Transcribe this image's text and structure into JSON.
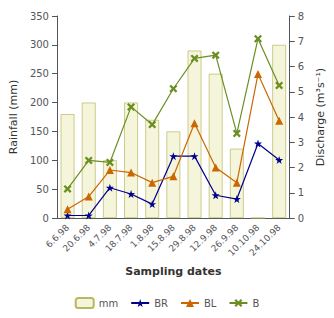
{
  "chart_data": {
    "type": "bar",
    "xlabel": "Sampling dates",
    "ylabel": "Rainfall (mm)",
    "y2label": "Discharge (m³s⁻¹)",
    "categories": [
      "6.6.98",
      "20.6.98",
      "4.7.98",
      "18.7.98",
      "1.8.98",
      "15.8.98",
      "29.8.98",
      "12.9.98",
      "26.9.98",
      "10.10.98",
      "24.10.98"
    ],
    "series": [
      {
        "name": "mm",
        "type": "bar",
        "color": "#f5f5dc",
        "values": [
          180,
          200,
          100,
          200,
          170,
          150,
          290,
          250,
          120,
          0,
          300
        ]
      },
      {
        "name": "BR",
        "type": "line",
        "axis": "y2",
        "color": "#00008B",
        "marker": "star",
        "values": [
          0.1,
          0.1,
          1.2,
          0.95,
          0.55,
          2.45,
          2.45,
          0.9,
          0.75,
          2.95,
          2.3
        ]
      },
      {
        "name": "BL",
        "type": "line",
        "axis": "y2",
        "color": "#CC6600",
        "marker": "triangle",
        "values": [
          0.35,
          0.85,
          1.9,
          1.8,
          1.4,
          1.65,
          3.75,
          2.0,
          1.4,
          5.7,
          3.85
        ]
      },
      {
        "name": "B",
        "type": "line",
        "axis": "y2",
        "color": "#6B8E23",
        "marker": "x",
        "values": [
          1.15,
          2.28,
          2.2,
          4.4,
          3.7,
          5.12,
          6.32,
          6.45,
          3.35,
          7.1,
          5.25
        ]
      }
    ],
    "ylim": [
      0,
      350
    ],
    "yticks": [
      0,
      50,
      100,
      150,
      200,
      250,
      300,
      350
    ],
    "y2lim": [
      0,
      8
    ],
    "y2ticks": [
      0,
      1,
      2,
      3,
      4,
      5,
      6,
      7,
      8
    ],
    "grid": false,
    "legend": "bottom"
  }
}
